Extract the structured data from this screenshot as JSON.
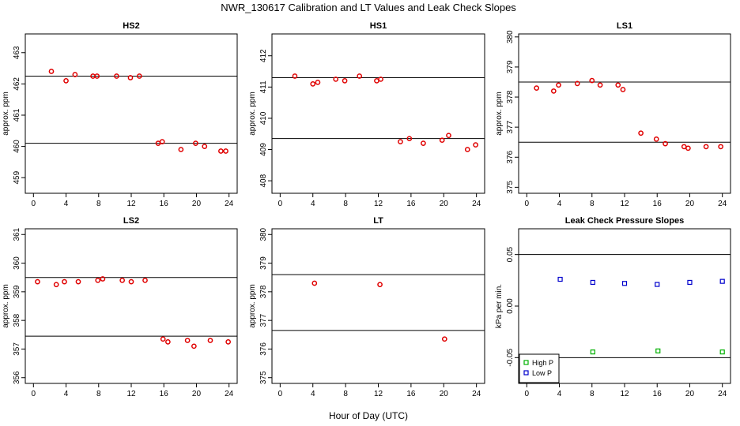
{
  "figure": {
    "title": "NWR_130617  Calibration and LT Values and Leak Check Slopes",
    "xlabel": "Hour of Day (UTC)"
  },
  "colors": {
    "red": "#e00000",
    "green": "#00b000",
    "blue": "#0000cc",
    "axis": "#000000"
  },
  "chart_data": [
    {
      "type": "scatter",
      "title": "HS2",
      "ylabel": "approx. ppm",
      "xlim": [
        -1,
        25
      ],
      "ylim": [
        458.5,
        463.6
      ],
      "xticks": [
        0,
        4,
        8,
        12,
        16,
        20,
        24
      ],
      "yticks": [
        459,
        460,
        461,
        462,
        463
      ],
      "hlines": [
        462.25,
        460.1
      ],
      "series": [
        {
          "color": "red",
          "marker": "circle",
          "x": [
            2.2,
            4.0,
            5.1,
            7.3,
            7.8,
            10.2,
            11.9,
            13.0,
            15.3,
            15.8,
            18.1,
            19.9,
            21.0,
            23.0,
            23.6
          ],
          "y": [
            462.4,
            462.1,
            462.3,
            462.25,
            462.25,
            462.25,
            462.2,
            462.25,
            460.1,
            460.15,
            459.9,
            460.1,
            460.0,
            459.85,
            459.85
          ]
        }
      ]
    },
    {
      "type": "scatter",
      "title": "HS1",
      "ylabel": "approx. ppm",
      "xlim": [
        -1,
        25
      ],
      "ylim": [
        407.6,
        412.7
      ],
      "xticks": [
        0,
        4,
        8,
        12,
        16,
        20,
        24
      ],
      "yticks": [
        408,
        409,
        410,
        411,
        412
      ],
      "hlines": [
        411.3,
        409.35
      ],
      "series": [
        {
          "color": "red",
          "marker": "circle",
          "x": [
            1.8,
            4.0,
            4.6,
            6.8,
            7.9,
            9.7,
            11.8,
            12.3,
            14.7,
            15.8,
            17.5,
            19.8,
            20.6,
            22.9,
            23.9
          ],
          "y": [
            411.35,
            411.1,
            411.15,
            411.25,
            411.2,
            411.35,
            411.2,
            411.25,
            409.25,
            409.35,
            409.2,
            409.3,
            409.45,
            409.0,
            409.15
          ]
        }
      ]
    },
    {
      "type": "scatter",
      "title": "LS1",
      "ylabel": "approx. ppm",
      "xlim": [
        -1,
        25
      ],
      "ylim": [
        374.8,
        380.1
      ],
      "xticks": [
        0,
        4,
        8,
        12,
        16,
        20,
        24
      ],
      "yticks": [
        375,
        376,
        377,
        378,
        379,
        380
      ],
      "hlines": [
        378.5,
        376.5
      ],
      "series": [
        {
          "color": "red",
          "marker": "circle",
          "x": [
            1.2,
            3.3,
            3.9,
            6.2,
            8.0,
            9.0,
            11.2,
            11.8,
            14.0,
            15.9,
            17.0,
            19.3,
            19.8,
            22.0,
            23.8
          ],
          "y": [
            378.3,
            378.2,
            378.4,
            378.45,
            378.55,
            378.4,
            378.4,
            378.25,
            376.8,
            376.6,
            376.45,
            376.35,
            376.3,
            376.35,
            376.35
          ]
        }
      ]
    },
    {
      "type": "scatter",
      "title": "LS2",
      "ylabel": "approx. ppm",
      "xlim": [
        -1,
        25
      ],
      "ylim": [
        355.8,
        361.2
      ],
      "xticks": [
        0,
        4,
        8,
        12,
        16,
        20,
        24
      ],
      "yticks": [
        356,
        357,
        358,
        359,
        360,
        361
      ],
      "hlines": [
        359.5,
        357.45
      ],
      "series": [
        {
          "color": "red",
          "marker": "circle",
          "x": [
            0.5,
            2.8,
            3.8,
            5.5,
            7.9,
            8.5,
            10.9,
            12.0,
            13.7,
            15.9,
            16.5,
            18.9,
            19.7,
            21.7,
            23.9
          ],
          "y": [
            359.35,
            359.25,
            359.35,
            359.35,
            359.4,
            359.45,
            359.4,
            359.35,
            359.4,
            357.35,
            357.25,
            357.3,
            357.1,
            357.3,
            357.25
          ]
        }
      ]
    },
    {
      "type": "scatter",
      "title": "LT",
      "ylabel": "approx. ppm",
      "xlim": [
        -1,
        25
      ],
      "ylim": [
        374.8,
        380.2
      ],
      "xticks": [
        0,
        4,
        8,
        12,
        16,
        20,
        24
      ],
      "yticks": [
        375,
        376,
        377,
        378,
        379,
        380
      ],
      "hlines": [
        378.6,
        376.65
      ],
      "series": [
        {
          "color": "red",
          "marker": "circle",
          "x": [
            4.2,
            12.2,
            20.1
          ],
          "y": [
            378.3,
            378.25,
            376.35
          ]
        }
      ]
    },
    {
      "type": "scatter",
      "title": "Leak Check Pressure Slopes",
      "ylabel": "kPa per min.",
      "xlim": [
        -1,
        25
      ],
      "ylim": [
        -0.075,
        0.075
      ],
      "xticks": [
        0,
        4,
        8,
        12,
        16,
        20,
        24
      ],
      "yticks": [
        -0.05,
        0.0,
        0.05
      ],
      "ytick_labels": [
        "-0.05",
        "0.00",
        "0.05"
      ],
      "hlines": [
        0.05,
        -0.05
      ],
      "legend": {
        "position": "bottom-left"
      },
      "series": [
        {
          "name": "High P",
          "color": "green",
          "marker": "square",
          "x": [
            8.1,
            16.1,
            24.0
          ],
          "y": [
            -0.0445,
            -0.0435,
            -0.0445
          ]
        },
        {
          "name": "Low P",
          "color": "blue",
          "marker": "square",
          "x": [
            4.1,
            8.1,
            12.0,
            16.0,
            20.0,
            24.0
          ],
          "y": [
            0.026,
            0.023,
            0.022,
            0.021,
            0.023,
            0.024
          ]
        }
      ]
    }
  ]
}
